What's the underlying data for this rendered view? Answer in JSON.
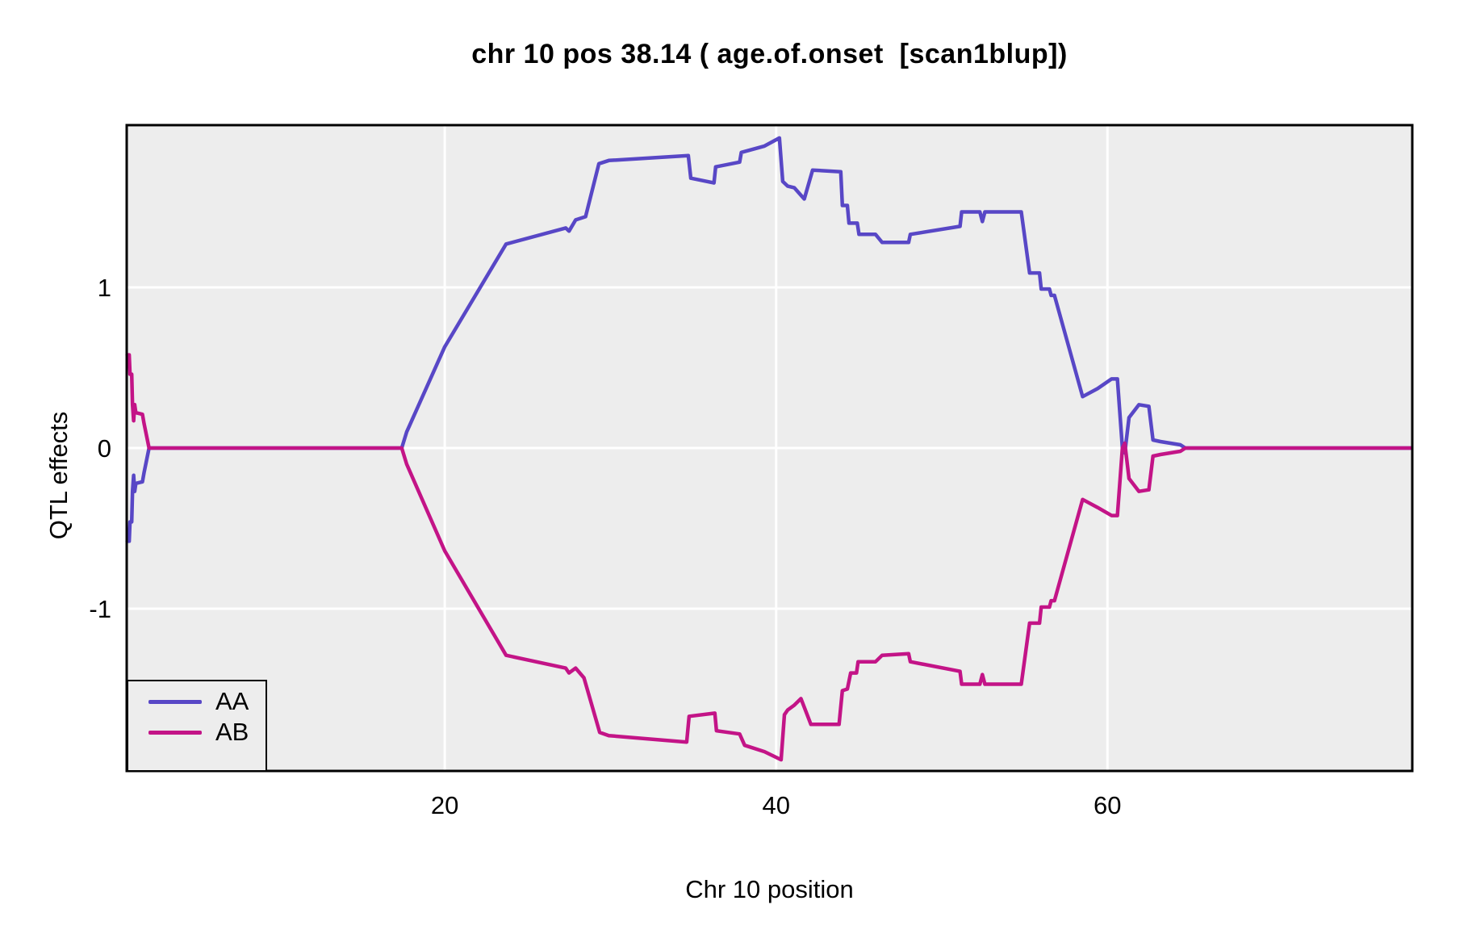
{
  "chart_data": {
    "type": "line",
    "title": "chr 10 pos 38.14 ( age.of.onset  [scan1blup])",
    "xlabel": "Chr 10 position",
    "ylabel": "QTL effects",
    "xlim": [
      0.8,
      78.4
    ],
    "ylim": [
      -2.01,
      2.01
    ],
    "x_ticks": [
      20,
      40,
      60
    ],
    "y_ticks": [
      -1,
      0,
      1
    ],
    "grid": true,
    "legend_position": "bottom-left",
    "colors": {
      "panel_background": "#ededed",
      "gridline": "#ffffff",
      "panel_border": "#000000",
      "text": "#000000"
    },
    "series": [
      {
        "name": "AA",
        "color": "#5847c6",
        "points": [
          [
            0.83,
            -0.58
          ],
          [
            0.95,
            -0.58
          ],
          [
            1.0,
            -0.46
          ],
          [
            1.1,
            -0.46
          ],
          [
            1.15,
            -0.27
          ],
          [
            1.22,
            -0.17
          ],
          [
            1.28,
            -0.27
          ],
          [
            1.35,
            -0.22
          ],
          [
            1.75,
            -0.21
          ],
          [
            1.85,
            -0.15
          ],
          [
            2.15,
            0.0
          ],
          [
            17.4,
            0.0
          ],
          [
            17.7,
            0.1
          ],
          [
            20.0,
            0.63
          ],
          [
            23.7,
            1.27
          ],
          [
            27.3,
            1.37
          ],
          [
            27.5,
            1.35
          ],
          [
            27.9,
            1.42
          ],
          [
            28.5,
            1.44
          ],
          [
            29.3,
            1.77
          ],
          [
            29.9,
            1.79
          ],
          [
            34.7,
            1.82
          ],
          [
            34.85,
            1.68
          ],
          [
            36.25,
            1.65
          ],
          [
            36.35,
            1.75
          ],
          [
            37.8,
            1.78
          ],
          [
            37.9,
            1.84
          ],
          [
            39.3,
            1.88
          ],
          [
            40.2,
            1.93
          ],
          [
            40.4,
            1.66
          ],
          [
            40.7,
            1.63
          ],
          [
            41.1,
            1.62
          ],
          [
            41.7,
            1.55
          ],
          [
            42.2,
            1.73
          ],
          [
            43.9,
            1.72
          ],
          [
            44.0,
            1.51
          ],
          [
            44.3,
            1.51
          ],
          [
            44.4,
            1.4
          ],
          [
            44.9,
            1.4
          ],
          [
            45.0,
            1.33
          ],
          [
            46.0,
            1.33
          ],
          [
            46.4,
            1.28
          ],
          [
            48.0,
            1.28
          ],
          [
            48.1,
            1.33
          ],
          [
            51.1,
            1.38
          ],
          [
            51.2,
            1.47
          ],
          [
            52.3,
            1.47
          ],
          [
            52.45,
            1.41
          ],
          [
            52.6,
            1.47
          ],
          [
            54.8,
            1.47
          ],
          [
            55.3,
            1.09
          ],
          [
            55.9,
            1.09
          ],
          [
            56.0,
            0.99
          ],
          [
            56.5,
            0.99
          ],
          [
            56.6,
            0.95
          ],
          [
            56.8,
            0.95
          ],
          [
            58.5,
            0.32
          ],
          [
            59.4,
            0.37
          ],
          [
            60.25,
            0.43
          ],
          [
            60.6,
            0.43
          ],
          [
            60.9,
            0.0
          ],
          [
            61.05,
            -0.03
          ],
          [
            61.3,
            0.19
          ],
          [
            61.9,
            0.27
          ],
          [
            62.5,
            0.26
          ],
          [
            62.75,
            0.05
          ],
          [
            63.2,
            0.04
          ],
          [
            64.4,
            0.02
          ],
          [
            64.7,
            0.0
          ],
          [
            78.3,
            0.0
          ]
        ]
      },
      {
        "name": "AB",
        "color": "#c31487",
        "points": [
          [
            0.83,
            0.58
          ],
          [
            0.95,
            0.58
          ],
          [
            1.0,
            0.46
          ],
          [
            1.1,
            0.46
          ],
          [
            1.15,
            0.27
          ],
          [
            1.22,
            0.17
          ],
          [
            1.28,
            0.27
          ],
          [
            1.35,
            0.22
          ],
          [
            1.75,
            0.21
          ],
          [
            1.85,
            0.15
          ],
          [
            2.15,
            0.0
          ],
          [
            17.4,
            0.0
          ],
          [
            17.7,
            -0.1
          ],
          [
            20.0,
            -0.64
          ],
          [
            23.7,
            -1.29
          ],
          [
            27.3,
            -1.37
          ],
          [
            27.5,
            -1.4
          ],
          [
            27.9,
            -1.37
          ],
          [
            28.4,
            -1.43
          ],
          [
            29.35,
            -1.77
          ],
          [
            29.9,
            -1.79
          ],
          [
            34.6,
            -1.83
          ],
          [
            34.75,
            -1.67
          ],
          [
            36.3,
            -1.65
          ],
          [
            36.4,
            -1.76
          ],
          [
            37.8,
            -1.78
          ],
          [
            38.1,
            -1.85
          ],
          [
            39.3,
            -1.89
          ],
          [
            40.3,
            -1.94
          ],
          [
            40.5,
            -1.66
          ],
          [
            40.7,
            -1.63
          ],
          [
            41.1,
            -1.6
          ],
          [
            41.5,
            -1.56
          ],
          [
            42.1,
            -1.72
          ],
          [
            43.8,
            -1.72
          ],
          [
            44.0,
            -1.51
          ],
          [
            44.3,
            -1.5
          ],
          [
            44.5,
            -1.4
          ],
          [
            44.85,
            -1.4
          ],
          [
            44.95,
            -1.33
          ],
          [
            46.0,
            -1.33
          ],
          [
            46.4,
            -1.29
          ],
          [
            48.0,
            -1.28
          ],
          [
            48.1,
            -1.33
          ],
          [
            51.1,
            -1.39
          ],
          [
            51.2,
            -1.47
          ],
          [
            52.3,
            -1.47
          ],
          [
            52.45,
            -1.41
          ],
          [
            52.6,
            -1.47
          ],
          [
            54.8,
            -1.47
          ],
          [
            55.3,
            -1.09
          ],
          [
            55.9,
            -1.09
          ],
          [
            56.0,
            -0.99
          ],
          [
            56.5,
            -0.99
          ],
          [
            56.6,
            -0.95
          ],
          [
            56.8,
            -0.95
          ],
          [
            58.5,
            -0.32
          ],
          [
            59.4,
            -0.37
          ],
          [
            60.25,
            -0.42
          ],
          [
            60.6,
            -0.42
          ],
          [
            60.9,
            0.0
          ],
          [
            61.05,
            0.03
          ],
          [
            61.3,
            -0.19
          ],
          [
            61.9,
            -0.27
          ],
          [
            62.5,
            -0.26
          ],
          [
            62.75,
            -0.05
          ],
          [
            63.2,
            -0.04
          ],
          [
            64.4,
            -0.02
          ],
          [
            64.7,
            0.0
          ],
          [
            78.3,
            0.0
          ]
        ]
      }
    ],
    "legend": {
      "entries": [
        {
          "label": "AA",
          "color": "#5847c6"
        },
        {
          "label": "AB",
          "color": "#c31487"
        }
      ]
    }
  }
}
